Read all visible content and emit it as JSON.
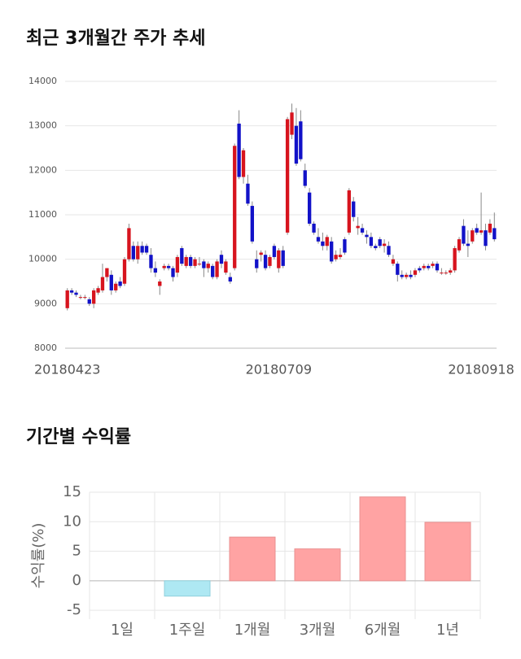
{
  "chart_data": [
    {
      "type": "candlestick",
      "title": "최근 3개월간 주가 추세",
      "categories": [
        "20180423",
        null,
        null,
        null,
        null,
        null,
        null,
        null,
        null,
        null,
        null,
        null,
        null,
        null,
        null,
        null,
        null,
        null,
        null,
        null,
        null,
        null,
        null,
        null,
        null,
        null,
        null,
        null,
        null,
        null,
        null,
        null,
        null,
        null,
        null,
        null,
        null,
        null,
        null,
        null,
        null,
        null,
        null,
        null,
        null,
        null,
        null,
        null,
        "20180709",
        null,
        null,
        null,
        null,
        null,
        null,
        null,
        null,
        null,
        null,
        null,
        null,
        null,
        null,
        null,
        null,
        null,
        null,
        null,
        null,
        null,
        null,
        null,
        null,
        null,
        null,
        null,
        null,
        null,
        null,
        null,
        null,
        null,
        null,
        null,
        null,
        null,
        null,
        null,
        null,
        null,
        null,
        null,
        null,
        null,
        "20180918",
        null,
        null,
        null
      ],
      "open": [
        8900,
        9300,
        9250,
        9150,
        9150,
        9100,
        9000,
        9250,
        9300,
        9600,
        9650,
        9300,
        9500,
        9450,
        10000,
        10300,
        10000,
        10300,
        10300,
        10100,
        9800,
        9400,
        9800,
        9850,
        9800,
        9700,
        10250,
        9850,
        10050,
        9850,
        9900,
        9950,
        9800,
        9850,
        9600,
        10100,
        9700,
        9600,
        9800,
        13050,
        11850,
        11700,
        11200,
        10000,
        10100,
        10100,
        9850,
        10300,
        9800,
        10200,
        10600,
        12800,
        13000,
        13100,
        12000,
        11500,
        10800,
        10500,
        10400,
        10300,
        10400,
        10000,
        10050,
        10450,
        10600,
        11300,
        10700,
        10700,
        10550,
        10500,
        10300,
        10450,
        10300,
        10300,
        9900,
        9900,
        9650,
        9600,
        9650,
        9650,
        9800,
        9800,
        9850,
        9850,
        9900,
        9700,
        9700,
        9700,
        9750,
        10200,
        10750,
        10350,
        10400,
        10700,
        10600,
        10650,
        10600,
        10700
      ],
      "high": [
        9350,
        9350,
        9300,
        9200,
        9200,
        9150,
        9350,
        9400,
        9900,
        9800,
        9750,
        9500,
        9600,
        10050,
        10800,
        10400,
        10400,
        10400,
        10350,
        10250,
        9950,
        9550,
        9900,
        9900,
        9850,
        10100,
        10300,
        10100,
        10100,
        10050,
        10050,
        10000,
        9950,
        9900,
        10000,
        10200,
        10000,
        9700,
        12600,
        13350,
        12500,
        11900,
        11300,
        10200,
        10200,
        10200,
        10100,
        10350,
        10250,
        10300,
        13200,
        13500,
        13400,
        13350,
        12150,
        11600,
        10850,
        10700,
        10600,
        10550,
        10500,
        10200,
        10250,
        10500,
        11600,
        11400,
        10950,
        10800,
        10650,
        10600,
        10350,
        10500,
        10450,
        10400,
        10100,
        9950,
        9750,
        9700,
        9750,
        9800,
        9850,
        9900,
        9900,
        9950,
        9950,
        9800,
        9750,
        9800,
        10300,
        10500,
        10900,
        10650,
        10700,
        10800,
        11500,
        10800,
        10900,
        11050
      ],
      "low": [
        8850,
        9200,
        9150,
        9100,
        9100,
        8950,
        8900,
        9200,
        9250,
        9500,
        9200,
        9250,
        9350,
        9400,
        9950,
        9950,
        9900,
        10100,
        10100,
        9700,
        9600,
        9200,
        9750,
        9750,
        9500,
        9600,
        9850,
        9800,
        9800,
        9800,
        9850,
        9600,
        9700,
        9550,
        9550,
        9800,
        9650,
        9450,
        9750,
        11800,
        11700,
        11200,
        10350,
        9700,
        9950,
        9750,
        9800,
        10000,
        9700,
        9800,
        10550,
        12700,
        12100,
        12200,
        11600,
        10750,
        10550,
        10350,
        10200,
        10200,
        9900,
        9950,
        10000,
        10100,
        10550,
        10850,
        10550,
        10550,
        10350,
        10250,
        10200,
        10250,
        10150,
        10050,
        9850,
        9500,
        9550,
        9550,
        9550,
        9600,
        9700,
        9750,
        9750,
        9800,
        9700,
        9650,
        9650,
        9650,
        9700,
        10150,
        10300,
        10050,
        10350,
        10550,
        10550,
        10200,
        10550,
        10400
      ],
      "close": [
        9300,
        9250,
        9200,
        9150,
        9150,
        9000,
        9300,
        9350,
        9600,
        9800,
        9300,
        9450,
        9400,
        10000,
        10700,
        10000,
        10300,
        10150,
        10150,
        9800,
        9700,
        9500,
        9850,
        9800,
        9600,
        10050,
        9900,
        10050,
        9850,
        10000,
        9900,
        9800,
        9900,
        9600,
        9950,
        9900,
        9950,
        9500,
        12550,
        11850,
        12450,
        11250,
        10400,
        9800,
        10150,
        9800,
        10050,
        10050,
        10200,
        9850,
        13150,
        13300,
        12150,
        12250,
        11650,
        10800,
        10600,
        10400,
        10300,
        10500,
        9950,
        10100,
        10100,
        10150,
        11550,
        10950,
        10750,
        10600,
        10500,
        10300,
        10250,
        10300,
        10350,
        10100,
        10000,
        9650,
        9600,
        9650,
        9600,
        9750,
        9750,
        9850,
        9800,
        9900,
        9750,
        9700,
        9700,
        9750,
        10250,
        10450,
        10350,
        10300,
        10650,
        10600,
        10650,
        10300,
        10800,
        10450
      ],
      "up_color": "#d7141e",
      "down_color": "#1212c8",
      "ylim": [
        8000,
        14000
      ],
      "yticks": [
        8000,
        9000,
        10000,
        11000,
        12000,
        13000,
        14000
      ],
      "grid": true
    },
    {
      "type": "bar",
      "title": "기간별 수익률",
      "ylabel": "수익률(%)",
      "categories": [
        "1일",
        "1주일",
        "1개월",
        "3개월",
        "6개월",
        "1년"
      ],
      "values": [
        0,
        -2.6,
        7.4,
        5.4,
        14.2,
        9.9
      ],
      "up_color": "#ffa3a3",
      "down_color": "#aee8f3",
      "ylim": [
        -6.5,
        15
      ],
      "yticks": [
        -5,
        0,
        5,
        10,
        15
      ],
      "grid": true
    }
  ]
}
